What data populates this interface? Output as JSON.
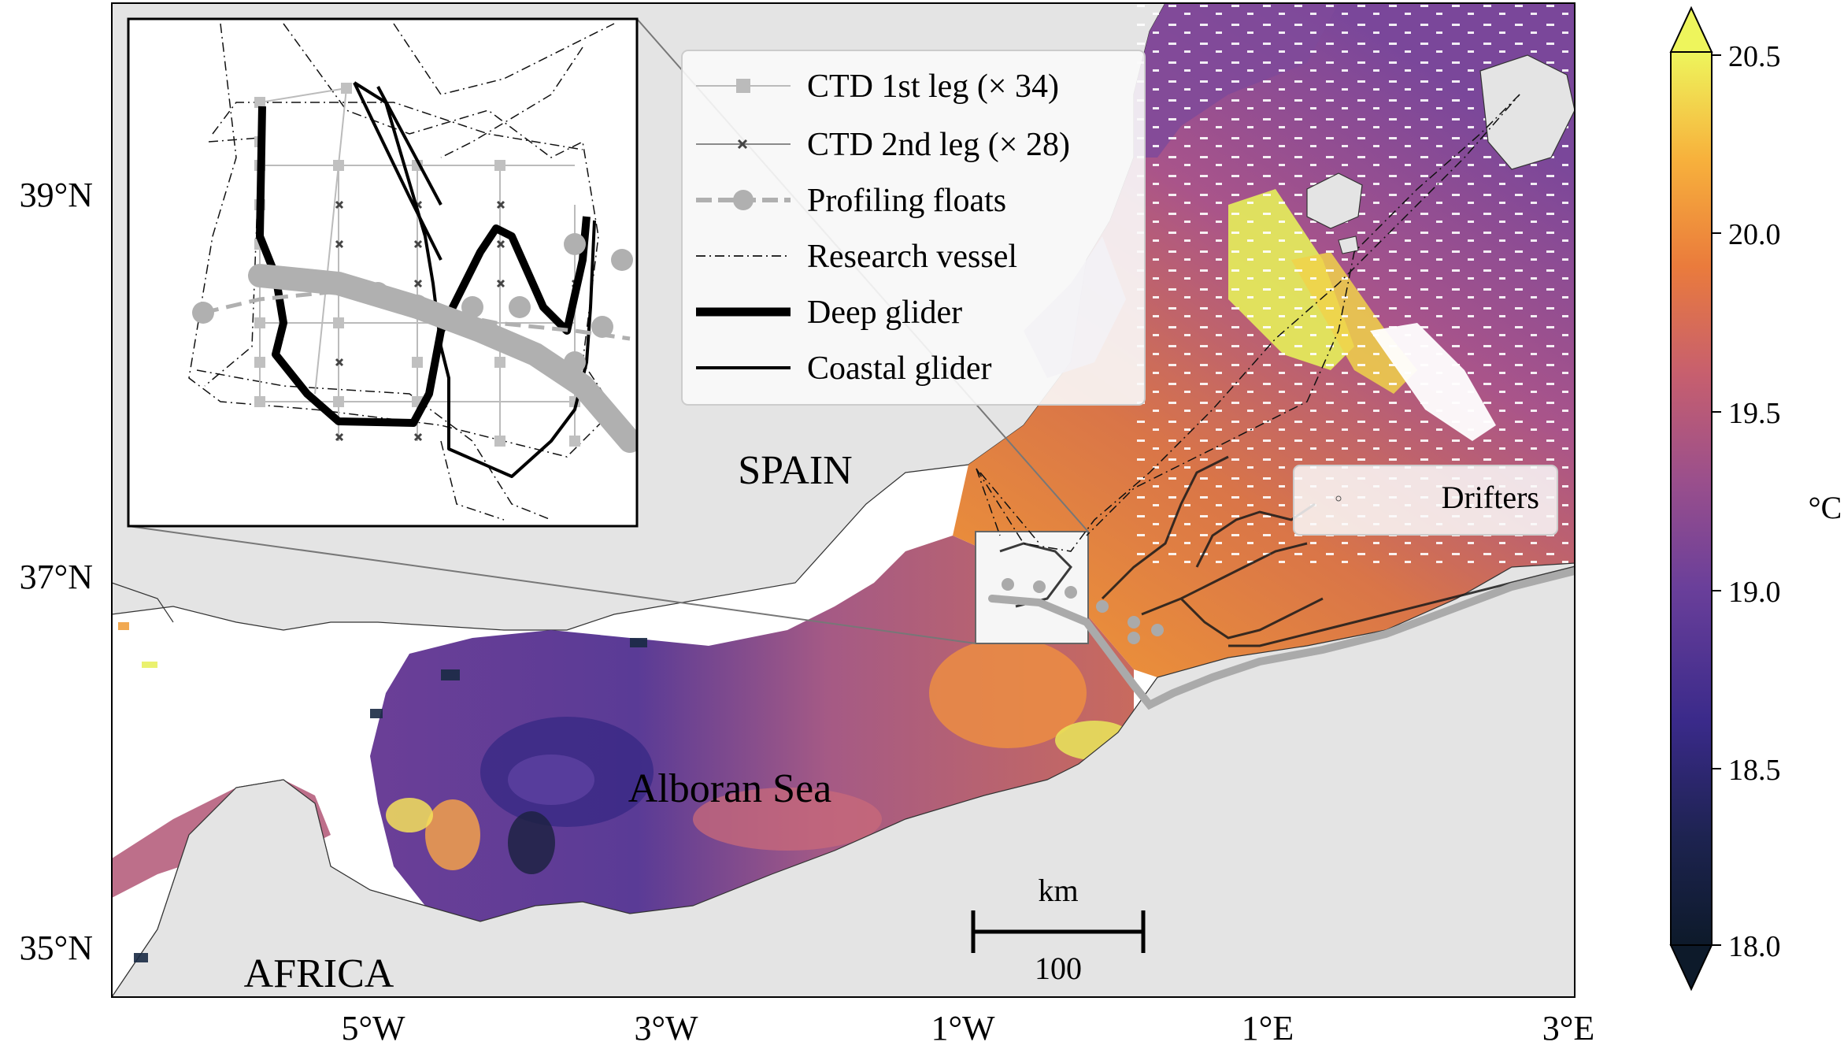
{
  "map": {
    "lat_labels": [
      "39°N",
      "37°N",
      "35°N"
    ],
    "lon_labels": [
      "5°W",
      "3°W",
      "1°W",
      "1°E",
      "3°E"
    ],
    "place_labels": {
      "spain": "SPAIN",
      "africa": "AFRICA",
      "sea": "Alboran Sea"
    },
    "scalebar": {
      "unit": "km",
      "value": "100"
    }
  },
  "legend": {
    "items": [
      {
        "label": "CTD 1st leg (× 34)",
        "style": "gray-square-line"
      },
      {
        "label": "CTD 2nd leg (× 28)",
        "style": "thin-x-line"
      },
      {
        "label": "Profiling floats",
        "style": "gray-dashed-circle"
      },
      {
        "label": "Research vessel",
        "style": "dash-dot"
      },
      {
        "label": "Deep glider",
        "style": "thick-black"
      },
      {
        "label": "Coastal glider",
        "style": "black"
      }
    ],
    "drifters_label": "Drifters"
  },
  "colorbar": {
    "unit": "°C",
    "ticks": [
      "20.5",
      "20.0",
      "19.5",
      "19.0",
      "18.5",
      "18.0"
    ],
    "colors": [
      "#0d1a2a",
      "#2b1a6e",
      "#5a3a9a",
      "#8a4e92",
      "#b35a7a",
      "#d86a4e",
      "#f08a30",
      "#f5b43a",
      "#e8f060"
    ]
  }
}
